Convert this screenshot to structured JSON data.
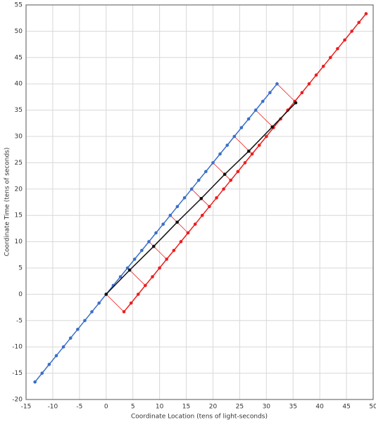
{
  "chart_data": {
    "type": "line",
    "xlabel": "Coordinate Location (tens of light-seconds)",
    "ylabel": "Coordinate Time (tens of seconds)",
    "xlim": [
      -15,
      50
    ],
    "ylim": [
      -20,
      55
    ],
    "xticks": [
      -15,
      -10,
      -5,
      0,
      5,
      10,
      15,
      20,
      25,
      30,
      35,
      40,
      45,
      50
    ],
    "yticks": [
      -20,
      -15,
      -10,
      -5,
      0,
      5,
      10,
      15,
      20,
      25,
      30,
      35,
      40,
      45,
      50,
      55
    ],
    "grid": true,
    "series": [
      {
        "color": "#3a6fc9",
        "x": [
          -13.33,
          -12,
          -10.67,
          -9.33,
          -8,
          -6.67,
          -5.33,
          -4,
          -2.67,
          -1.33,
          0,
          1.33,
          2.67,
          4,
          5.33,
          6.67,
          8,
          9.33,
          10.67,
          12,
          13.33,
          14.67,
          16,
          17.33,
          18.67,
          20,
          21.33,
          22.67,
          24,
          25.33,
          26.67,
          28,
          29.33,
          30.67,
          32
        ],
        "values": [
          -16.67,
          -15,
          -13.33,
          -11.67,
          -10,
          -8.33,
          -6.67,
          -5,
          -3.33,
          -1.67,
          0,
          1.67,
          3.33,
          5,
          6.67,
          8.33,
          10,
          11.67,
          13.33,
          15,
          16.67,
          18.33,
          20,
          21.67,
          23.33,
          25,
          26.67,
          28.33,
          30,
          31.67,
          33.33,
          35,
          36.67,
          38.33,
          40
        ]
      },
      {
        "color": "#ee1c1c",
        "x": [
          3.33,
          4.67,
          6,
          7.33,
          8.67,
          10,
          11.33,
          12.67,
          14,
          15.33,
          16.67,
          18,
          19.33,
          20.67,
          22,
          23.33,
          24.67,
          26,
          27.33,
          28.67,
          30,
          31.33,
          32.67,
          34,
          35.33,
          36.67,
          38,
          39.33,
          40.67,
          42,
          43.33,
          44.67,
          46,
          47.33,
          48.67
        ],
        "values": [
          -3.33,
          -1.67,
          0,
          1.67,
          3.33,
          5,
          6.67,
          8.33,
          10,
          11.67,
          13.33,
          15,
          16.67,
          18.33,
          20,
          21.67,
          23.33,
          25,
          26.67,
          28.33,
          30,
          31.67,
          33.33,
          35,
          36.67,
          38.33,
          40,
          41.67,
          43.33,
          45,
          46.67,
          48.33,
          50,
          51.67,
          53.33
        ]
      },
      {
        "color": "#111111",
        "x": [
          0,
          4.4,
          8.9,
          13.3,
          17.8,
          22.2,
          26.7,
          31.1,
          35.5
        ],
        "values": [
          0,
          4.6,
          9.1,
          13.7,
          18.2,
          22.8,
          27.2,
          31.8,
          36.4
        ]
      }
    ],
    "segments_color": "#ee1c1c",
    "segments": [
      {
        "x": [
          0,
          3.33
        ],
        "y": [
          0,
          -3.33
        ]
      },
      {
        "x": [
          4,
          7.33
        ],
        "y": [
          5,
          1.67
        ]
      },
      {
        "x": [
          8,
          11.33
        ],
        "y": [
          10,
          6.67
        ]
      },
      {
        "x": [
          12,
          15.33
        ],
        "y": [
          15,
          11.67
        ]
      },
      {
        "x": [
          16,
          19.33
        ],
        "y": [
          20,
          16.67
        ]
      },
      {
        "x": [
          20,
          23.33
        ],
        "y": [
          25,
          21.67
        ]
      },
      {
        "x": [
          24,
          27.33
        ],
        "y": [
          30,
          26.67
        ]
      },
      {
        "x": [
          28,
          31.33
        ],
        "y": [
          35,
          31.67
        ]
      },
      {
        "x": [
          32,
          35.33
        ],
        "y": [
          40,
          36.67
        ]
      }
    ]
  }
}
